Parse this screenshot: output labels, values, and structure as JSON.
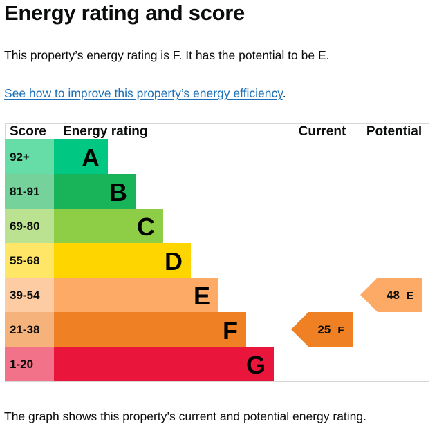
{
  "page": {
    "title": "Energy rating and score",
    "summary": "This property’s energy rating is F. It has the potential to be E.",
    "link_text": "See how to improve this property’s energy efficiency",
    "link_suffix": ".",
    "footer": "The graph shows this property’s current and potential energy rating."
  },
  "chart_data": {
    "type": "table",
    "title": "Energy rating and score",
    "headers": {
      "score": "Score",
      "rating": "Energy rating",
      "current": "Current",
      "potential": "Potential"
    },
    "bands": [
      {
        "band": "A",
        "score": "92+",
        "color": "#00c781",
        "score_color": "#66dda7"
      },
      {
        "band": "B",
        "score": "81-91",
        "color": "#19b459",
        "score_color": "#75d29b"
      },
      {
        "band": "C",
        "score": "69-80",
        "color": "#8dce46",
        "score_color": "#bbe290"
      },
      {
        "band": "D",
        "score": "55-68",
        "color": "#ffd500",
        "score_color": "#ffe666"
      },
      {
        "band": "E",
        "score": "39-54",
        "color": "#fcaa65",
        "score_color": "#fdcca3"
      },
      {
        "band": "F",
        "score": "21-38",
        "color": "#ef8023",
        "score_color": "#f5b37b"
      },
      {
        "band": "G",
        "score": "1-20",
        "color": "#e9153b",
        "score_color": "#f27389"
      }
    ],
    "current": {
      "score": 25,
      "band": "F",
      "color": "#ef8023"
    },
    "potential": {
      "score": 48,
      "band": "E",
      "color": "#fcaa65"
    }
  }
}
